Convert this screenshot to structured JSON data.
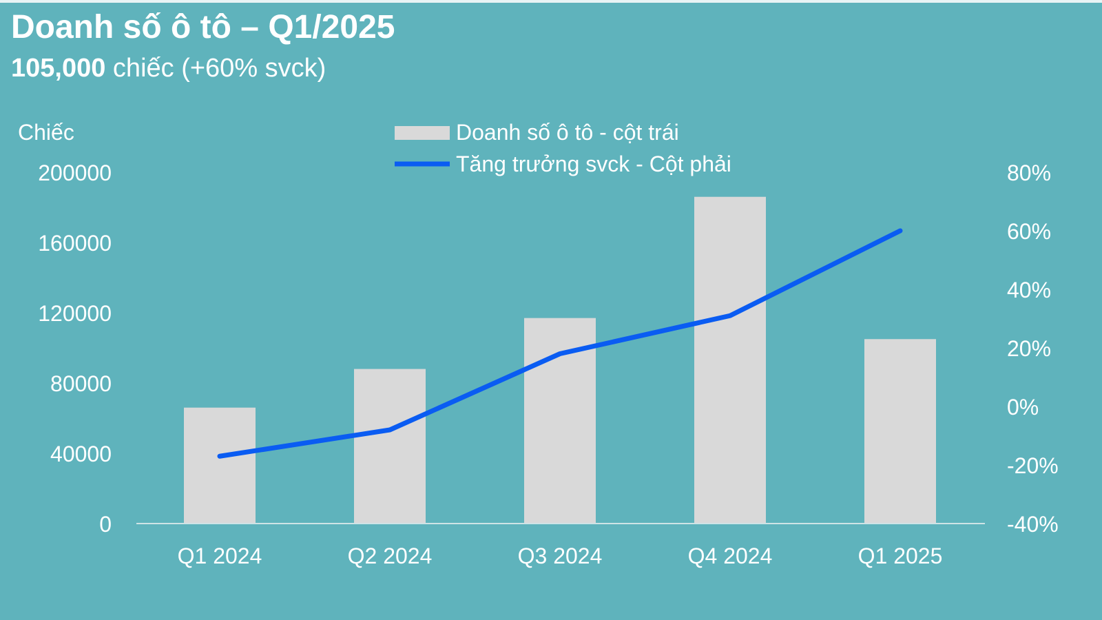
{
  "header": {
    "title": "Doanh số ô tô – Q1/2025",
    "subtitle_value": "105,000",
    "subtitle_rest": " chiếc (+60% svck)"
  },
  "chart_data": {
    "type": "bar",
    "title": "Doanh số ô tô – Q1/2025",
    "categories": [
      "Q1 2024",
      "Q2 2024",
      "Q3 2024",
      "Q4 2024",
      "Q1 2025"
    ],
    "series": [
      {
        "name": "Doanh số ô tô - cột trái",
        "type": "bar",
        "axis": "left",
        "values": [
          66000,
          88000,
          117000,
          186000,
          105000
        ]
      },
      {
        "name": "Tăng trưởng svck - Cột phải",
        "type": "line",
        "axis": "right",
        "values": [
          -17,
          -8,
          18,
          31,
          60
        ]
      }
    ],
    "ylabel": "Chiếc",
    "ylim": [
      0,
      200000
    ],
    "yticks": [
      "0",
      "40000",
      "80000",
      "120000",
      "160000",
      "200000"
    ],
    "y2lim": [
      -40,
      80
    ],
    "y2ticks": [
      "-40%",
      "-20%",
      "0%",
      "20%",
      "40%",
      "60%",
      "80%"
    ],
    "legend_position": "top-center",
    "colors": {
      "bar": "#d9d9d9",
      "line": "#0a5cf2",
      "axis": "#cfe3e6"
    }
  }
}
